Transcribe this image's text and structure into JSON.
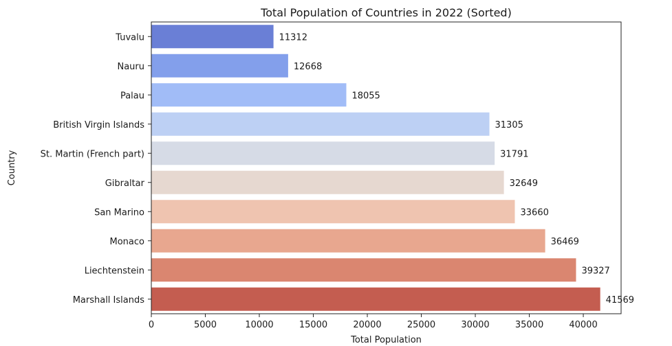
{
  "chart_data": {
    "type": "bar",
    "orientation": "horizontal",
    "title": "Total Population of Countries in 2022 (Sorted)",
    "xlabel": "Total Population",
    "ylabel": "Country",
    "xlim": [
      0,
      43500
    ],
    "xticks": [
      0,
      5000,
      10000,
      15000,
      20000,
      25000,
      30000,
      35000,
      40000
    ],
    "grid": false,
    "legend": "none",
    "categories": [
      "Tuvalu",
      "Nauru",
      "Palau",
      "British Virgin Islands",
      "St. Martin (French part)",
      "Gibraltar",
      "San Marino",
      "Monaco",
      "Liechtenstein",
      "Marshall Islands"
    ],
    "values": [
      11312,
      12668,
      18055,
      31305,
      31791,
      32649,
      33660,
      36469,
      39327,
      41569
    ],
    "colors": [
      "#6a7fd6",
      "#839feb",
      "#a1bcf7",
      "#bdd0f4",
      "#d6dbe6",
      "#e6d8d0",
      "#efc4b0",
      "#e8a78f",
      "#da8670",
      "#c45d50"
    ]
  }
}
